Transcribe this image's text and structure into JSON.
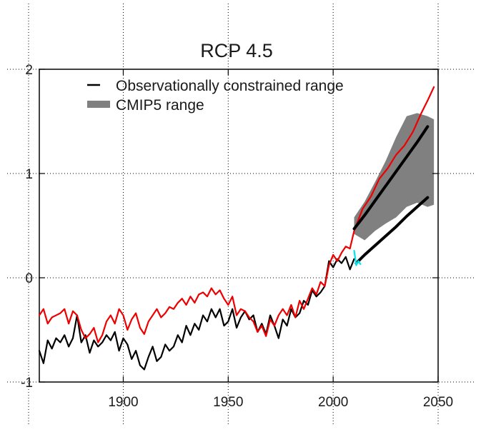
{
  "chart_data": {
    "type": "line",
    "title": "RCP 4.5",
    "xlabel": "",
    "ylabel": "",
    "xlim": [
      1860,
      2050
    ],
    "ylim": [
      -1,
      2
    ],
    "xticks": [
      1900,
      1950,
      2000,
      2050
    ],
    "yticks": [
      -1,
      0,
      1,
      2
    ],
    "xtick_labels": [
      "1900",
      "1950",
      "2000",
      "2050"
    ],
    "ytick_labels": [
      "-1",
      "0",
      "1",
      "2"
    ],
    "grid": true,
    "legend_position": "top-left",
    "legend": [
      {
        "label": "Observationally constrained range",
        "style": "line",
        "color": "#000000"
      },
      {
        "label": "CMIP5 range",
        "style": "patch",
        "color": "#808080"
      }
    ],
    "series": [
      {
        "name": "CMIP5 range",
        "kind": "band",
        "color": "#808080",
        "x": [
          2010,
          2015,
          2020,
          2025,
          2030,
          2035,
          2040,
          2045,
          2048
        ],
        "upper": [
          0.58,
          0.73,
          0.92,
          1.12,
          1.35,
          1.55,
          1.58,
          1.55,
          1.52
        ],
        "lower": [
          0.42,
          0.36,
          0.45,
          0.52,
          0.58,
          0.68,
          0.72,
          0.68,
          0.7
        ]
      },
      {
        "name": "Observationally constrained range (upper)",
        "kind": "line",
        "color": "#000000",
        "x": [
          2010,
          2015,
          2020,
          2025,
          2030,
          2035,
          2040,
          2045
        ],
        "y": [
          0.47,
          0.6,
          0.74,
          0.88,
          1.02,
          1.16,
          1.3,
          1.45
        ]
      },
      {
        "name": "Observationally constrained range (lower)",
        "kind": "line",
        "color": "#000000",
        "x": [
          2011,
          2015,
          2020,
          2025,
          2030,
          2035,
          2040,
          2045
        ],
        "y": [
          0.14,
          0.22,
          0.31,
          0.4,
          0.49,
          0.59,
          0.68,
          0.77
        ]
      },
      {
        "name": "Observations (cyan)",
        "kind": "line",
        "color": "#00e5ee",
        "x": [
          2010,
          2011,
          2012,
          2013
        ],
        "y": [
          0.26,
          0.12,
          0.16,
          0.13
        ]
      },
      {
        "name": "Observations (black)",
        "kind": "line",
        "color": "#000000",
        "x": [
          1860,
          1862,
          1864,
          1866,
          1868,
          1870,
          1872,
          1874,
          1876,
          1878,
          1880,
          1882,
          1884,
          1886,
          1888,
          1890,
          1892,
          1894,
          1896,
          1898,
          1900,
          1902,
          1904,
          1906,
          1908,
          1910,
          1912,
          1914,
          1916,
          1918,
          1920,
          1922,
          1924,
          1926,
          1928,
          1930,
          1932,
          1934,
          1936,
          1938,
          1940,
          1942,
          1944,
          1946,
          1948,
          1950,
          1952,
          1954,
          1956,
          1958,
          1960,
          1962,
          1964,
          1966,
          1968,
          1970,
          1972,
          1974,
          1976,
          1978,
          1980,
          1982,
          1984,
          1986,
          1988,
          1990,
          1992,
          1994,
          1996,
          1998,
          2000,
          2002,
          2004,
          2006,
          2008,
          2010
        ],
        "y": [
          -0.7,
          -0.82,
          -0.6,
          -0.68,
          -0.58,
          -0.62,
          -0.55,
          -0.66,
          -0.58,
          -0.36,
          -0.62,
          -0.55,
          -0.72,
          -0.6,
          -0.66,
          -0.62,
          -0.55,
          -0.6,
          -0.52,
          -0.7,
          -0.58,
          -0.64,
          -0.78,
          -0.7,
          -0.84,
          -0.88,
          -0.76,
          -0.66,
          -0.8,
          -0.76,
          -0.64,
          -0.7,
          -0.66,
          -0.55,
          -0.62,
          -0.46,
          -0.55,
          -0.44,
          -0.5,
          -0.36,
          -0.42,
          -0.3,
          -0.38,
          -0.3,
          -0.46,
          -0.42,
          -0.3,
          -0.48,
          -0.38,
          -0.32,
          -0.4,
          -0.36,
          -0.52,
          -0.44,
          -0.54,
          -0.36,
          -0.46,
          -0.58,
          -0.4,
          -0.46,
          -0.3,
          -0.38,
          -0.34,
          -0.22,
          -0.26,
          -0.12,
          -0.18,
          -0.14,
          -0.08,
          0.16,
          0.1,
          0.18,
          0.14,
          0.2,
          0.08,
          0.18
        ]
      },
      {
        "name": "Model projection (red)",
        "kind": "line",
        "color": "#ee0000",
        "x": [
          1860,
          1862,
          1864,
          1866,
          1868,
          1870,
          1872,
          1874,
          1876,
          1878,
          1880,
          1882,
          1884,
          1886,
          1888,
          1890,
          1892,
          1894,
          1896,
          1898,
          1900,
          1902,
          1904,
          1906,
          1908,
          1910,
          1912,
          1914,
          1916,
          1918,
          1920,
          1922,
          1924,
          1926,
          1928,
          1930,
          1932,
          1934,
          1936,
          1938,
          1940,
          1942,
          1944,
          1946,
          1948,
          1950,
          1952,
          1954,
          1956,
          1958,
          1960,
          1962,
          1964,
          1966,
          1968,
          1970,
          1972,
          1974,
          1976,
          1978,
          1980,
          1982,
          1984,
          1986,
          1988,
          1990,
          1992,
          1994,
          1996,
          1998,
          2000,
          2002,
          2004,
          2006,
          2008,
          2010,
          2014,
          2018,
          2022,
          2026,
          2030,
          2034,
          2038,
          2042,
          2045,
          2048
        ],
        "y": [
          -0.36,
          -0.3,
          -0.44,
          -0.38,
          -0.36,
          -0.34,
          -0.3,
          -0.44,
          -0.32,
          -0.36,
          -0.5,
          -0.58,
          -0.54,
          -0.48,
          -0.62,
          -0.55,
          -0.42,
          -0.36,
          -0.44,
          -0.3,
          -0.36,
          -0.5,
          -0.4,
          -0.34,
          -0.48,
          -0.54,
          -0.42,
          -0.36,
          -0.3,
          -0.38,
          -0.34,
          -0.28,
          -0.3,
          -0.24,
          -0.2,
          -0.26,
          -0.18,
          -0.24,
          -0.16,
          -0.14,
          -0.18,
          -0.1,
          -0.16,
          -0.12,
          -0.2,
          -0.26,
          -0.18,
          -0.36,
          -0.3,
          -0.32,
          -0.38,
          -0.42,
          -0.52,
          -0.46,
          -0.56,
          -0.4,
          -0.46,
          -0.36,
          -0.3,
          -0.36,
          -0.26,
          -0.38,
          -0.22,
          -0.3,
          -0.2,
          -0.1,
          -0.16,
          -0.04,
          -0.08,
          0.12,
          0.22,
          0.16,
          0.24,
          0.3,
          0.28,
          0.45,
          0.66,
          0.78,
          0.95,
          1.05,
          1.18,
          1.27,
          1.4,
          1.58,
          1.7,
          1.83
        ]
      }
    ]
  }
}
